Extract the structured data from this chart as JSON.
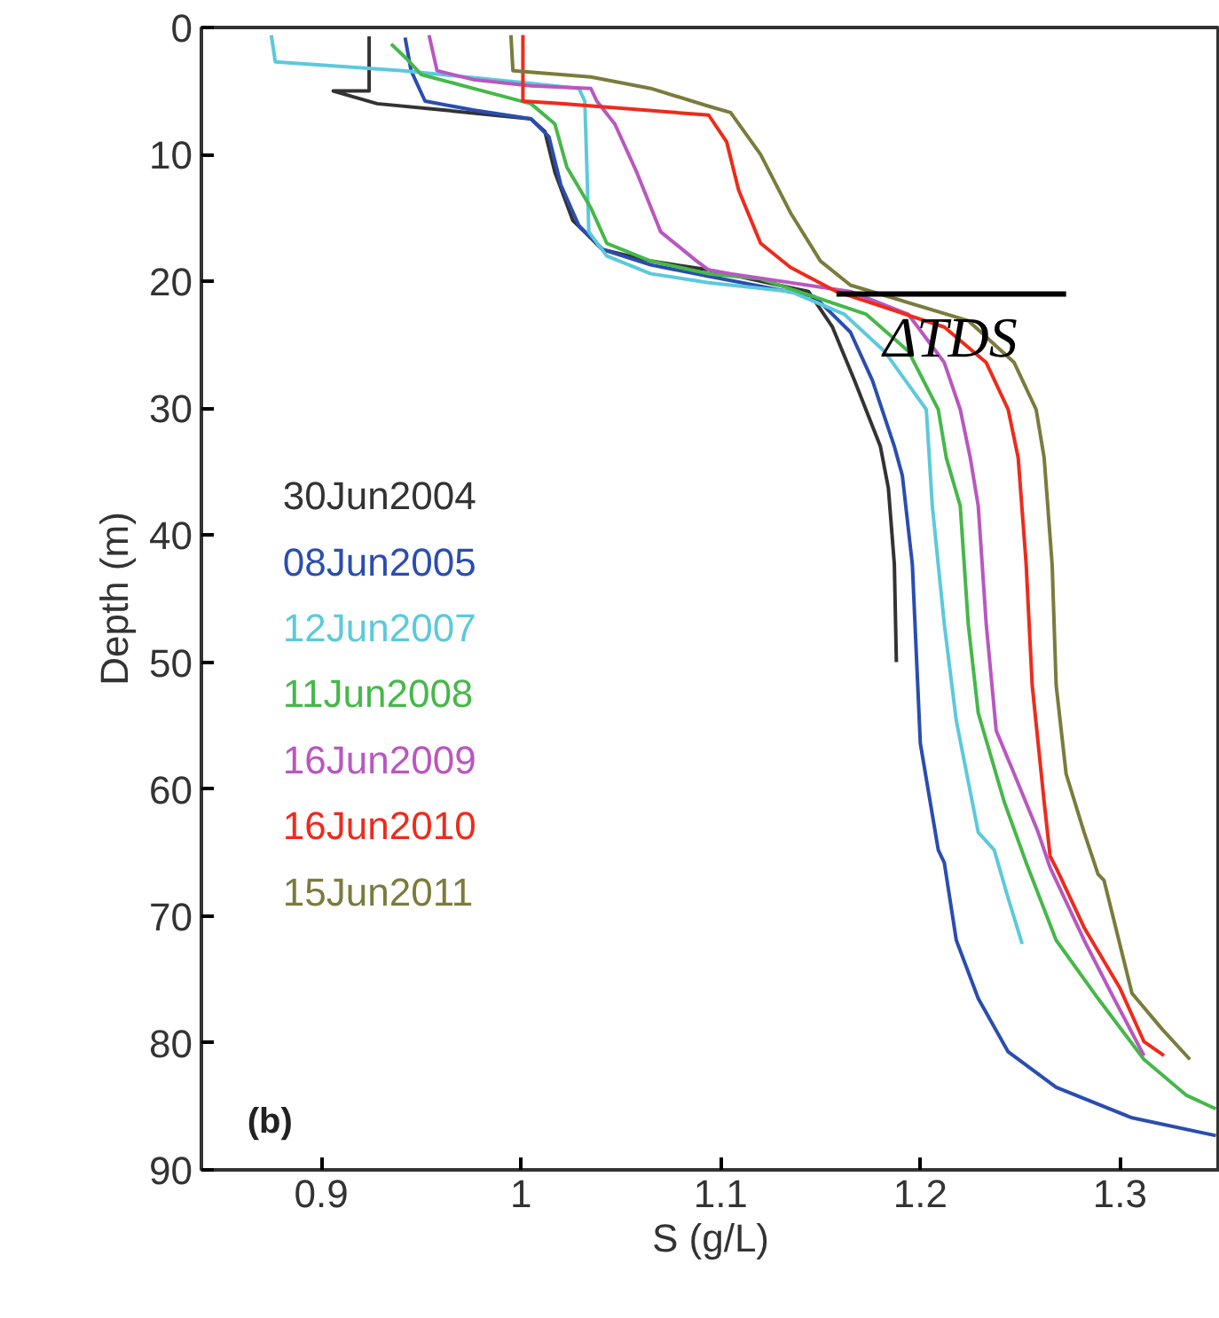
{
  "chart_data": {
    "type": "line",
    "xlabel": "S (g/L)",
    "ylabel": "Depth (m)",
    "xlim": [
      0.84,
      1.35
    ],
    "ylim": [
      90,
      0
    ],
    "xticks": [
      0.9,
      1,
      1.1,
      1.2,
      1.3
    ],
    "yticks": [
      0,
      10,
      20,
      30,
      40,
      50,
      60,
      70,
      80,
      90
    ],
    "grid": false,
    "legend": "left",
    "line_style": "solid",
    "marker": "none",
    "series": [
      {
        "name": "30Jun2004",
        "color": "#333333",
        "x": [
          0.924,
          0.924,
          0.906,
          0.928,
          0.961,
          1.005,
          1.012,
          1.017,
          1.026,
          1.041,
          1.065,
          1.094,
          1.144,
          1.156,
          1.167,
          1.18,
          1.184,
          1.187,
          1.188
        ],
        "values": [
          0.7,
          5,
          5,
          6,
          6.5,
          7.2,
          8.2,
          11.4,
          15.2,
          17.5,
          18.4,
          19.1,
          20.8,
          23.6,
          27.8,
          33,
          36.3,
          42.3,
          50
        ]
      },
      {
        "name": "08Jun2005",
        "color": "#2a4db0",
        "x": [
          0.942,
          0.945,
          0.952,
          0.976,
          1.005,
          1.014,
          1.02,
          1.029,
          1.041,
          1.065,
          1.094,
          1.147,
          1.165,
          1.176,
          1.187,
          1.191,
          1.196,
          1.2,
          1.209,
          1.212,
          1.218,
          1.229,
          1.244,
          1.268,
          1.306,
          1.348
        ],
        "values": [
          0.8,
          3.4,
          5.8,
          6.5,
          7.2,
          8.6,
          12.4,
          15.6,
          17.5,
          18.7,
          19.6,
          21.2,
          24,
          27.8,
          33,
          35.3,
          42.3,
          56.4,
          64.8,
          65.8,
          71.9,
          76.5,
          80.7,
          83.5,
          85.9,
          87.3
        ]
      },
      {
        "name": "12Jun2007",
        "color": "#5cc9dc",
        "x": [
          0.875,
          0.877,
          0.941,
          1.005,
          1.029,
          1.032,
          1.034,
          1.043,
          1.065,
          1.094,
          1.135,
          1.162,
          1.182,
          1.203,
          1.206,
          1.212,
          1.218,
          1.229,
          1.237,
          1.244,
          1.251
        ],
        "values": [
          0.6,
          2.7,
          3.4,
          4.4,
          4.8,
          5.8,
          16.1,
          18,
          19.4,
          20.1,
          20.8,
          22.6,
          25.5,
          30.1,
          37.7,
          47,
          54.6,
          63.4,
          64.8,
          68.6,
          72.2
        ]
      },
      {
        "name": "11Jun2008",
        "color": "#45b849",
        "x": [
          0.935,
          0.943,
          0.95,
          0.976,
          1.005,
          1.017,
          1.023,
          1.035,
          1.043,
          1.065,
          1.094,
          1.12,
          1.173,
          1.194,
          1.209,
          1.213,
          1.22,
          1.224,
          1.229,
          1.242,
          1.253,
          1.268,
          1.289,
          1.312,
          1.333,
          1.348
        ],
        "values": [
          1.3,
          2.5,
          3.7,
          4.8,
          6,
          7.6,
          11,
          14.2,
          17,
          18.4,
          19.4,
          19.8,
          22.6,
          25.5,
          30.1,
          33.9,
          37.7,
          47,
          54,
          61,
          65.8,
          71.9,
          76.5,
          81.3,
          84.1,
          85.2
        ]
      },
      {
        "name": "16Jun2009",
        "color": "#b957c0",
        "x": [
          0.954,
          0.958,
          0.976,
          1.005,
          1.035,
          1.038,
          1.047,
          1.058,
          1.07,
          1.088,
          1.094,
          1.105,
          1.165,
          1.194,
          1.212,
          1.22,
          1.225,
          1.229,
          1.233,
          1.238,
          1.247,
          1.259,
          1.265,
          1.268,
          1.282,
          1.297,
          1.312
        ],
        "values": [
          0.6,
          3.4,
          4.1,
          4.6,
          4.8,
          5.8,
          7.6,
          11.4,
          16.1,
          18.4,
          19.1,
          19.4,
          20.8,
          22.6,
          26.4,
          30.1,
          33.9,
          37.7,
          47,
          55.4,
          58.8,
          63.4,
          66.2,
          67.2,
          71.9,
          76.5,
          81
        ]
      },
      {
        "name": "16Jun2010",
        "color": "#ee2b1c",
        "x": [
          1.001,
          1.001,
          1.02,
          1.094,
          1.103,
          1.109,
          1.12,
          1.135,
          1.158,
          1.212,
          1.233,
          1.244,
          1.249,
          1.253,
          1.256,
          1.262,
          1.265,
          1.268,
          1.282,
          1.3,
          1.312,
          1.322
        ],
        "values": [
          0.6,
          5.8,
          6,
          6.9,
          9,
          12.8,
          17,
          18.9,
          20.8,
          23.6,
          26.4,
          30.1,
          33.9,
          42.3,
          51.8,
          61,
          65.3,
          66.2,
          70.9,
          75.7,
          79.9,
          81
        ]
      },
      {
        "name": "15Jun2011",
        "color": "#7b7b3c",
        "x": [
          0.995,
          0.996,
          1.035,
          1.065,
          1.094,
          1.105,
          1.12,
          1.135,
          1.15,
          1.165,
          1.224,
          1.247,
          1.258,
          1.262,
          1.266,
          1.268,
          1.273,
          1.282,
          1.289,
          1.292,
          1.306,
          1.321,
          1.335
        ],
        "values": [
          0.6,
          3.4,
          3.9,
          4.8,
          6.2,
          6.7,
          10,
          14.6,
          18.4,
          20.3,
          23.1,
          26.4,
          30.1,
          33.9,
          42.3,
          51.8,
          58.8,
          63.4,
          66.7,
          67.2,
          76.1,
          78.9,
          81.3
        ]
      },
      {
        "color": "#000000",
        "x": [
          1.158,
          1.273
        ],
        "values": [
          21,
          21
        ]
      }
    ],
    "annotations": [
      {
        "text": "ΔTDS",
        "x": 1.215,
        "y": 21
      },
      "(b)"
    ]
  }
}
